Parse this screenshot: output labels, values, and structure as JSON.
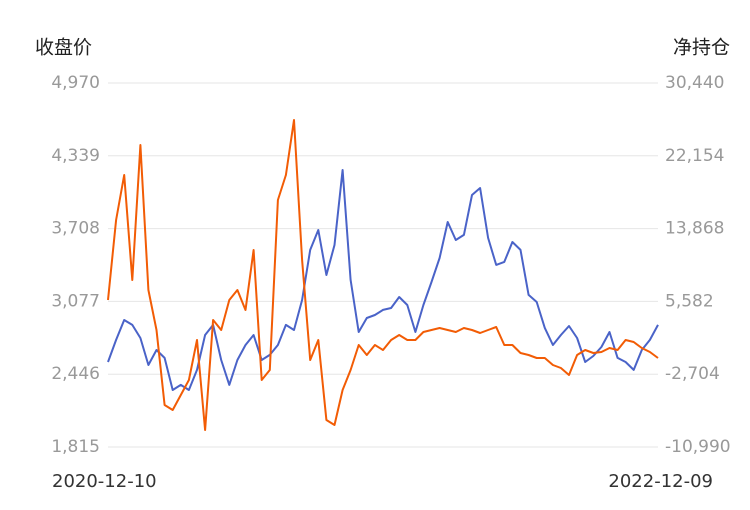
{
  "chart_data": {
    "type": "line",
    "ylabel": "收盘价",
    "y2label": "净持仓",
    "categories": [
      "2020-12-10",
      null,
      null,
      null,
      null,
      null,
      null,
      null,
      null,
      null,
      null,
      null,
      null,
      null,
      null,
      null,
      null,
      null,
      null,
      null,
      null,
      null,
      null,
      null,
      null,
      null,
      null,
      null,
      null,
      null,
      null,
      null,
      null,
      null,
      null,
      null,
      null,
      null,
      null,
      null,
      null,
      null,
      null,
      null,
      null,
      null,
      null,
      null,
      null,
      null,
      null,
      null,
      null,
      null,
      null,
      null,
      null,
      null,
      null,
      null,
      null,
      null,
      null,
      null,
      null,
      null,
      null,
      null,
      "2022-12-09"
    ],
    "series": [
      {
        "color": "#4a63c8",
        "values": [
          2552,
          2743,
          2916,
          2873,
          2760,
          2526,
          2656,
          2587,
          2309,
          2353,
          2309,
          2483,
          2786,
          2873,
          2569,
          2353,
          2569,
          2699,
          2786,
          2569,
          2613,
          2699,
          2873,
          2829,
          3089,
          3523,
          3696,
          3306,
          3566,
          4216,
          3263,
          2812,
          2933,
          2959,
          3003,
          3020,
          3115,
          3046,
          2812,
          3046,
          3245,
          3453,
          3765,
          3609,
          3653,
          3999,
          4060,
          3627,
          3393,
          3419,
          3592,
          3523,
          3133,
          3072,
          2847,
          2699,
          2786,
          2864,
          2760,
          2552,
          2604,
          2682,
          2812,
          2587,
          2552,
          2483,
          2656,
          2743,
          2873
        ]
      },
      {
        "color": "#f25c05",
        "axis": "y2",
        "values": [
          5741,
          14847,
          19969,
          8017,
          23383,
          6879,
          2326,
          -6210,
          -6779,
          -5072,
          -3365,
          1188,
          -9056,
          3465,
          2326,
          5741,
          6879,
          4603,
          11432,
          -3365,
          -2226,
          17123,
          19969,
          26229,
          10294,
          -1088,
          1188,
          -7917,
          -8486,
          -4503,
          -2226,
          619,
          -519,
          619,
          50,
          1188,
          1757,
          1188,
          1188,
          2099,
          2326,
          2554,
          2326,
          2099,
          2554,
          2326,
          1985,
          2326,
          2668,
          619,
          619,
          -291,
          -519,
          -861,
          -861,
          -1657,
          -1999,
          -2795,
          -519,
          50,
          -291,
          -178,
          278,
          50,
          1188,
          961,
          278,
          -178,
          -861
        ]
      }
    ],
    "ylim": [
      1815,
      4970
    ],
    "yticks": [
      {
        "value": 1815,
        "label": "1,815"
      },
      {
        "value": 2446,
        "label": "2,446"
      },
      {
        "value": 3077,
        "label": "3,077"
      },
      {
        "value": 3708,
        "label": "3,708"
      },
      {
        "value": 4339,
        "label": "4,339"
      },
      {
        "value": 4970,
        "label": "4,970"
      }
    ],
    "y2lim": [
      -10990,
      30440
    ],
    "y2ticks": [
      {
        "value": -10990,
        "label": "-10,990"
      },
      {
        "value": -2704,
        "label": "-2,704"
      },
      {
        "value": 5582,
        "label": "5,582"
      },
      {
        "value": 13868,
        "label": "13,868"
      },
      {
        "value": 22154,
        "label": "22,154"
      },
      {
        "value": 30440,
        "label": "30,440"
      }
    ],
    "grid": true
  }
}
